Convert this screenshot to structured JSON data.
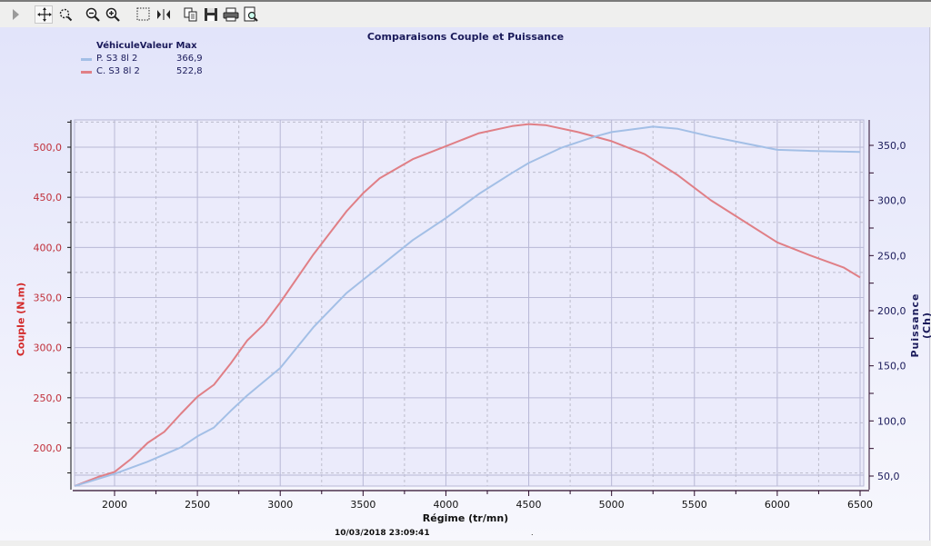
{
  "toolbar": {
    "buttons": [
      {
        "name": "play-icon",
        "label": "▶"
      },
      {
        "name": "pan-icon",
        "label": "✥"
      },
      {
        "name": "zoom-fit-icon",
        "label": "⊕"
      },
      {
        "name": "zoom-out-icon",
        "label": "−"
      },
      {
        "name": "zoom-in-icon",
        "label": "+"
      },
      {
        "name": "select-rect-icon",
        "label": "⬚"
      },
      {
        "name": "split-icon",
        "label": "▸|◂"
      },
      {
        "name": "copy-icon",
        "label": "⎘"
      },
      {
        "name": "save-icon",
        "label": "💾"
      },
      {
        "name": "print-icon",
        "label": "⎙"
      },
      {
        "name": "print-preview-icon",
        "label": "🔍"
      }
    ]
  },
  "chart": {
    "title": "Comparaisons Couple et Puissance",
    "legend": {
      "header_vehicle": "Véhicule",
      "header_value": "Valeur Max",
      "rows": [
        {
          "name": "P. S3 8l 2",
          "value": "366,9",
          "color": "#a3bfe6"
        },
        {
          "name": "C. S3 8l 2",
          "value": "522,8",
          "color": "#e07f86"
        }
      ]
    },
    "ylabel_left": "Couple (N.m)",
    "ylabel_right": "Puissance (Ch)",
    "xlabel": "Régime (tr/mn)",
    "timestamp": "10/03/2018 23:09:41",
    "dot": "."
  },
  "chart_data": {
    "type": "line",
    "title": "Comparaisons Couple et Puissance",
    "xlabel": "Régime (tr/mn)",
    "ylabel": "Couple (N.m)",
    "y2label": "Puissance (Ch)",
    "xlim": [
      1760,
      6530
    ],
    "ylim": [
      162,
      527
    ],
    "y2lim": [
      41,
      373
    ],
    "xticks": [
      2000,
      2500,
      3000,
      3500,
      4000,
      4500,
      5000,
      5500,
      6000,
      6500
    ],
    "yticks": [
      "200,0",
      "250,0",
      "300,0",
      "350,0",
      "400,0",
      "450,0",
      "500,0"
    ],
    "y2ticks": [
      "50,0",
      "100,0",
      "150,0",
      "200,0",
      "250,0",
      "300,0",
      "350,0"
    ],
    "grid": true,
    "legend_position": "top-left",
    "series": [
      {
        "name": "C. S3 8l 2",
        "axis": "left",
        "color": "#e07f86",
        "max": "522,8",
        "x": [
          1760,
          1900,
          2000,
          2100,
          2200,
          2300,
          2400,
          2500,
          2600,
          2700,
          2800,
          2900,
          3000,
          3200,
          3400,
          3500,
          3600,
          3800,
          4000,
          4200,
          4400,
          4500,
          4600,
          4800,
          5000,
          5200,
          5400,
          5600,
          5800,
          6000,
          6200,
          6400,
          6500
        ],
        "values": [
          162,
          171,
          176,
          189,
          205,
          216,
          234,
          251,
          263,
          284,
          307,
          323,
          345,
          393,
          436,
          454,
          469,
          488,
          501,
          514,
          521,
          523,
          522,
          515,
          506,
          493,
          472,
          447,
          426,
          405,
          392,
          380,
          370
        ]
      },
      {
        "name": "P. S3 8l 2",
        "axis": "right",
        "color": "#a3bfe6",
        "max": "366,9",
        "x": [
          1760,
          2000,
          2200,
          2400,
          2500,
          2600,
          2700,
          2800,
          3000,
          3200,
          3400,
          3500,
          3600,
          3800,
          4000,
          4200,
          4400,
          4500,
          4700,
          4900,
          5000,
          5200,
          5250,
          5400,
          5600,
          5800,
          6000,
          6200,
          6500
        ],
        "values": [
          41,
          52,
          63,
          76,
          86,
          94,
          109,
          123,
          148,
          185,
          216,
          228,
          240,
          264,
          284,
          306,
          325,
          334,
          348,
          358,
          362,
          366,
          367,
          365,
          358,
          352,
          346,
          345,
          344
        ]
      }
    ]
  }
}
